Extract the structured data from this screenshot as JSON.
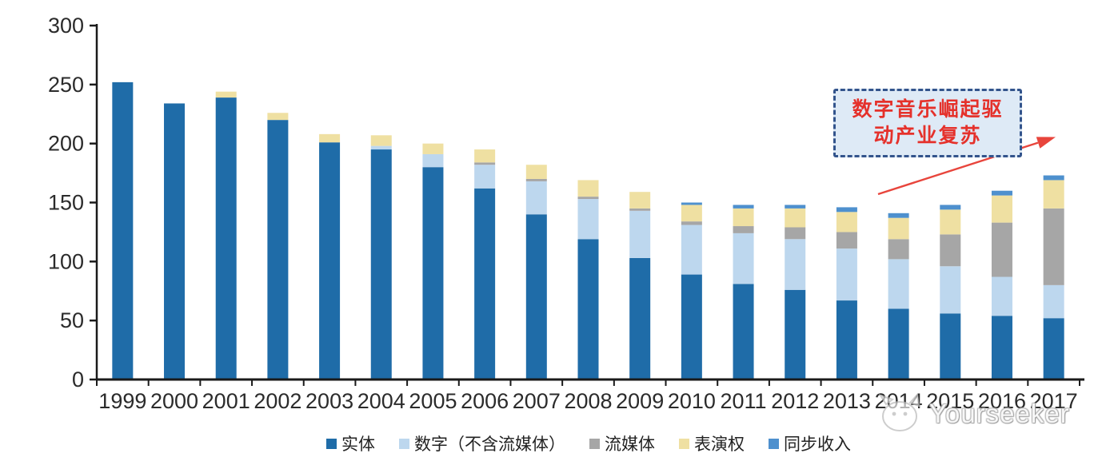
{
  "chart_data": {
    "type": "bar",
    "stacked": true,
    "title": "",
    "xlabel": "",
    "ylabel": "",
    "categories": [
      "1999",
      "2000",
      "2001",
      "2002",
      "2003",
      "2004",
      "2005",
      "2006",
      "2007",
      "2008",
      "2009",
      "2010",
      "2011",
      "2012",
      "2013",
      "2014",
      "2015",
      "2016",
      "2017"
    ],
    "series": [
      {
        "name": "实体",
        "color": "#1F6CA8",
        "values": [
          252,
          234,
          239,
          220,
          201,
          195,
          180,
          162,
          140,
          119,
          103,
          89,
          81,
          76,
          67,
          60,
          56,
          54,
          52
        ]
      },
      {
        "name": "数字（不含流媒体）",
        "color": "#BDD7EE",
        "values": [
          0,
          0,
          0,
          0,
          0,
          3,
          11,
          20,
          28,
          34,
          40,
          42,
          43,
          43,
          44,
          42,
          40,
          33,
          28
        ]
      },
      {
        "name": "流媒体",
        "color": "#A6A6A6",
        "values": [
          0,
          0,
          0,
          0,
          0,
          0,
          0,
          2,
          2,
          2,
          2,
          3,
          6,
          10,
          14,
          17,
          27,
          46,
          65
        ]
      },
      {
        "name": "表演权",
        "color": "#EFE0A2",
        "values": [
          0,
          0,
          5,
          6,
          7,
          9,
          9,
          11,
          12,
          14,
          14,
          14,
          15,
          16,
          17,
          18,
          21,
          23,
          24
        ]
      },
      {
        "name": "同步收入",
        "color": "#4E90CE",
        "values": [
          0,
          0,
          0,
          0,
          0,
          0,
          0,
          0,
          0,
          0,
          0,
          2,
          3,
          3,
          4,
          4,
          4,
          4,
          4
        ]
      }
    ],
    "totals": [
      252,
      234,
      244,
      226,
      208,
      207,
      200,
      195,
      182,
      169,
      159,
      150,
      148,
      148,
      146,
      141,
      148,
      160,
      173
    ],
    "ylim": [
      0,
      300
    ],
    "yticks": [
      0,
      50,
      100,
      150,
      200,
      250,
      300
    ],
    "grid": false,
    "legend_position": "bottom",
    "axis_color": "#1a1a1a"
  },
  "annotation": {
    "line1": "数字音乐崛起驱",
    "line2": "动产业复苏",
    "text_color": "#E5312B",
    "box_fill": "#DEEAF6",
    "box_border_color": "#33548C",
    "arrow_color": "#E8453C"
  },
  "watermark": {
    "text": "Yourseeker",
    "logo": "cat-face-logo"
  }
}
